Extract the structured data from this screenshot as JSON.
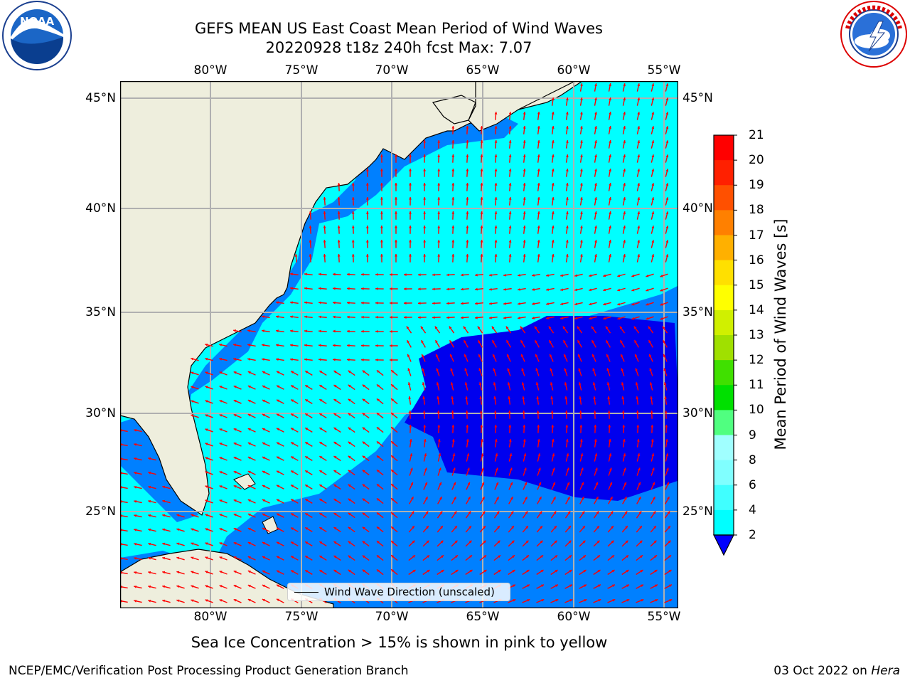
{
  "header": {
    "title_line1": "GEFS MEAN US East Coast Mean Period of Wind Waves",
    "title_line2": "20220928 t18z 240h fcst   Max: 7.07"
  },
  "logos": {
    "noaa": {
      "text": "NOAA",
      "ring_text": "NATIONAL OCEANIC AND ATMOSPHERIC ADMINISTRATION · U.S. DEPARTMENT OF COMMERCE"
    },
    "nws": {
      "ring_text": "NATIONAL WEATHER SERVICE"
    }
  },
  "map": {
    "lon_labels": [
      "80°W",
      "75°W",
      "70°W",
      "65°W",
      "60°W",
      "55°W"
    ],
    "lat_labels": [
      "45°N",
      "40°N",
      "35°N",
      "30°N",
      "25°N"
    ],
    "lon_extent": [
      -85,
      -54.5
    ],
    "lat_extent": [
      20.5,
      46
    ],
    "colors": {
      "land": "#eeeedd",
      "grid": "#b0b0b0",
      "arrow": "#ff0000",
      "coast": "#000000"
    },
    "legend_label": "Wind Wave Direction (unscaled)"
  },
  "colorbar": {
    "label": "Mean Period of Wind Waves [s]",
    "ticks": [
      "2",
      "4",
      "6",
      "8",
      "9",
      "10",
      "11",
      "12",
      "13",
      "14",
      "15",
      "16",
      "17",
      "18",
      "19",
      "20",
      "21"
    ],
    "colors": [
      "#0000ff",
      "#0080ff",
      "#00ffff",
      "#40ffff",
      "#80ffff",
      "#a0ffff",
      "#50ff80",
      "#00e000",
      "#40e000",
      "#a0e000",
      "#d0f000",
      "#ffff00",
      "#ffe000",
      "#ffb000",
      "#ff8000",
      "#ff5000",
      "#ff2000",
      "#ff0000"
    ]
  },
  "notes": {
    "sea_ice": "Sea Ice Concentration > 15% is shown in pink to yellow"
  },
  "footer": {
    "left": "NCEP/EMC/Verification Post Processing Product Generation Branch",
    "date": "03 Oct 2022 on",
    "host": "Hera"
  }
}
